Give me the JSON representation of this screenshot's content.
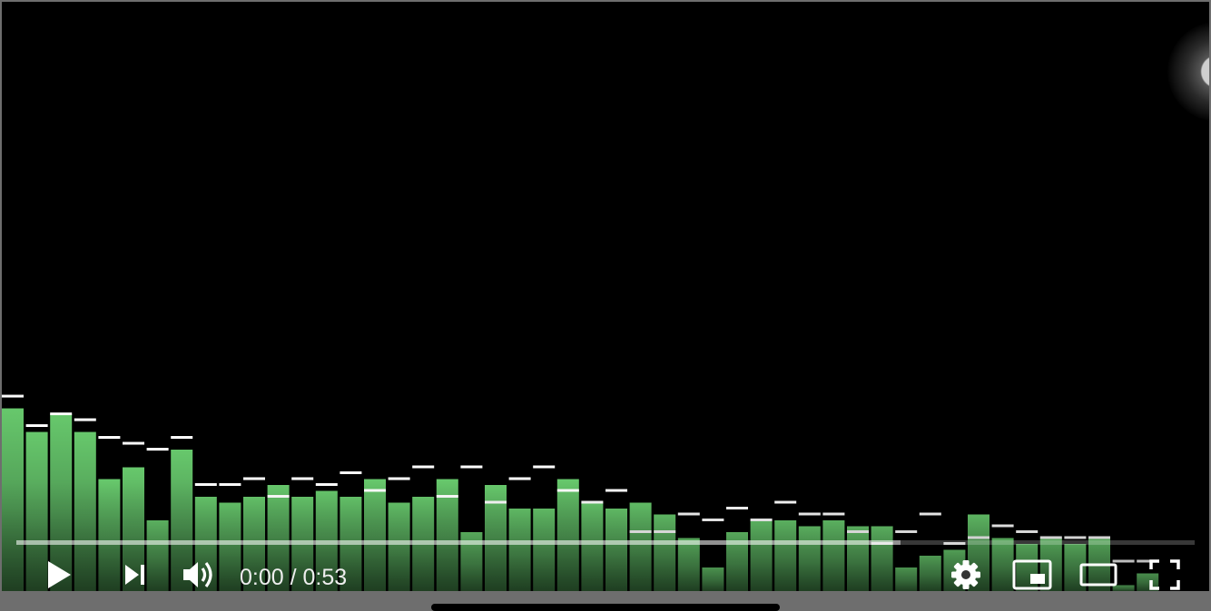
{
  "player": {
    "time_current": "0:00",
    "time_separator": " / ",
    "time_duration": "0:53",
    "progress_played_fraction": 0.0,
    "progress_buffered_fraction": 0.75
  },
  "controls": {
    "play_icon": "play-icon",
    "next_icon": "next-icon",
    "volume_icon": "volume-icon",
    "settings_icon": "gear-icon",
    "miniplayer_icon": "miniplayer-icon",
    "theater_icon": "theater-mode-icon",
    "fullscreen_icon": "fullscreen-icon"
  },
  "visualizer": {
    "levels": [
      0.31,
      0.27,
      0.3,
      0.27,
      0.19,
      0.21,
      0.12,
      0.24,
      0.16,
      0.15,
      0.16,
      0.18,
      0.16,
      0.17,
      0.16,
      0.19,
      0.15,
      0.16,
      0.19,
      0.1,
      0.18,
      0.14,
      0.14,
      0.19,
      0.15,
      0.14,
      0.15,
      0.13,
      0.09,
      0.04,
      0.1,
      0.12,
      0.12,
      0.11,
      0.12,
      0.11,
      0.11,
      0.04,
      0.06,
      0.07,
      0.13,
      0.09,
      0.08,
      0.09,
      0.08,
      0.09,
      0.01,
      0.03
    ],
    "peaks": [
      0.33,
      0.28,
      0.3,
      0.29,
      0.26,
      0.25,
      0.24,
      0.26,
      0.18,
      0.18,
      0.19,
      0.16,
      0.19,
      0.18,
      0.2,
      0.17,
      0.19,
      0.21,
      0.16,
      0.21,
      0.15,
      0.19,
      0.21,
      0.17,
      0.15,
      0.17,
      0.1,
      0.1,
      0.13,
      0.12,
      0.14,
      0.12,
      0.15,
      0.13,
      0.13,
      0.1,
      0.08,
      0.1,
      0.13,
      0.08,
      0.09,
      0.11,
      0.1,
      0.09,
      0.09,
      0.09,
      0.05,
      0.05
    ],
    "bar_color": "#5fc065"
  },
  "colors": {
    "accent": "#ff0000",
    "control_fg": "#ffffff"
  }
}
